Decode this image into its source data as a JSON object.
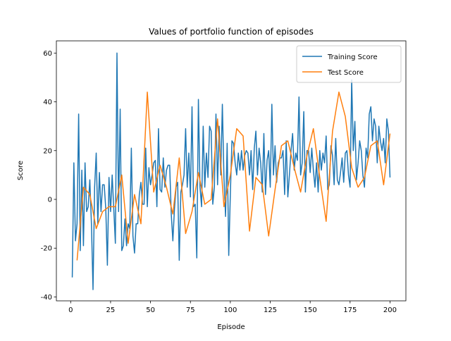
{
  "chart_data": {
    "type": "line",
    "title": "Values of portfolio function of episodes",
    "x_label": "Episode",
    "y_label": "Score",
    "xlim": [
      -8.95,
      209.95
    ],
    "ylim": [
      -41.6,
      65
    ],
    "xticks": [
      0,
      25,
      50,
      75,
      100,
      125,
      150,
      175,
      200
    ],
    "yticks": [
      -40,
      -20,
      0,
      20,
      40,
      60
    ],
    "grid": false,
    "legend": "upper right",
    "series": [
      {
        "name": "Training Score",
        "color": "#1f77b4",
        "x": [
          1,
          2,
          3,
          4,
          5,
          6,
          7,
          8,
          9,
          10,
          11,
          12,
          13,
          14,
          15,
          16,
          17,
          18,
          19,
          20,
          21,
          22,
          23,
          24,
          25,
          26,
          27,
          28,
          29,
          30,
          31,
          32,
          33,
          34,
          35,
          36,
          37,
          38,
          39,
          40,
          41,
          42,
          43,
          44,
          45,
          46,
          47,
          48,
          49,
          50,
          51,
          52,
          53,
          54,
          55,
          56,
          57,
          58,
          59,
          60,
          61,
          62,
          63,
          64,
          65,
          66,
          67,
          68,
          69,
          70,
          71,
          72,
          73,
          74,
          75,
          76,
          77,
          78,
          79,
          80,
          81,
          82,
          83,
          84,
          85,
          86,
          87,
          88,
          89,
          90,
          91,
          92,
          93,
          94,
          95,
          96,
          97,
          98,
          99,
          100,
          101,
          102,
          103,
          104,
          105,
          106,
          107,
          108,
          109,
          110,
          111,
          112,
          113,
          114,
          115,
          116,
          117,
          118,
          119,
          120,
          121,
          122,
          123,
          124,
          125,
          126,
          127,
          128,
          129,
          130,
          131,
          132,
          133,
          134,
          135,
          136,
          137,
          138,
          139,
          140,
          141,
          142,
          143,
          144,
          145,
          146,
          147,
          148,
          149,
          150,
          151,
          152,
          153,
          154,
          155,
          156,
          157,
          158,
          159,
          160,
          161,
          162,
          163,
          164,
          165,
          166,
          167,
          168,
          169,
          170,
          171,
          172,
          173,
          174,
          175,
          176,
          177,
          178,
          179,
          180,
          181,
          182,
          183,
          184,
          185,
          186,
          187,
          188,
          189,
          190,
          191,
          192,
          193,
          194,
          195,
          196,
          197,
          198,
          199,
          200
        ],
        "values": [
          -32,
          15,
          -17,
          -10,
          35,
          -21,
          12,
          -19,
          15,
          -5,
          -3,
          8,
          -10,
          -37,
          5,
          19,
          -10,
          11,
          -5,
          6,
          6,
          -4,
          -27,
          9,
          -5,
          10,
          -4,
          -18,
          60,
          -5,
          37,
          -21,
          -19,
          -8,
          -19,
          -10,
          -12,
          21,
          -15,
          -22,
          -10,
          -10,
          2,
          7,
          -2,
          -2,
          21,
          -3,
          13,
          6,
          10,
          15,
          16,
          -3,
          29,
          4,
          3,
          17,
          5,
          12,
          14,
          14,
          -6,
          -17,
          -4,
          5,
          7,
          -25,
          3,
          6,
          10,
          29,
          5,
          19,
          1,
          38,
          -3,
          -2,
          -24,
          41,
          5,
          -3,
          30,
          5,
          19,
          9,
          30,
          28,
          -2,
          5,
          35,
          6,
          30,
          10,
          39,
          9,
          -7,
          23,
          -23,
          2,
          24,
          23,
          15,
          10,
          19,
          12,
          20,
          12,
          18,
          20,
          19,
          10,
          20,
          4,
          21,
          28,
          10,
          21,
          15,
          3,
          27,
          2,
          16,
          20,
          5,
          39,
          10,
          22,
          7,
          15,
          17,
          17,
          20,
          2,
          24,
          1,
          10,
          20,
          27,
          12,
          19,
          16,
          42,
          10,
          15,
          36,
          3,
          20,
          20,
          11,
          21,
          12,
          5,
          15,
          3,
          20,
          12,
          19,
          15,
          26,
          4,
          6,
          22,
          18,
          6,
          25,
          8,
          6,
          11,
          17,
          7,
          19,
          20,
          10,
          5,
          49,
          20,
          32,
          8,
          15,
          24,
          20,
          10,
          5,
          21,
          17,
          35,
          38,
          24,
          33,
          30,
          15,
          30,
          24,
          20,
          25,
          15,
          33,
          28,
          9
        ]
      },
      {
        "name": "Test Score",
        "color": "#ff7f0e",
        "x": [
          4,
          8,
          12,
          16,
          20,
          24,
          28,
          32,
          36,
          40,
          44,
          48,
          52,
          56,
          60,
          64,
          68,
          72,
          76,
          80,
          84,
          88,
          92,
          96,
          100,
          104,
          108,
          112,
          116,
          120,
          124,
          128,
          132,
          136,
          140,
          144,
          148,
          152,
          156,
          160,
          164,
          168,
          172,
          176,
          180,
          184,
          188,
          192,
          196,
          200
        ],
        "values": [
          -25,
          5,
          2,
          -12,
          -5,
          -3,
          -3,
          10,
          -18,
          2,
          -10,
          44,
          3,
          14,
          5,
          -6,
          17,
          -14,
          -5,
          11,
          -2,
          0,
          33,
          -3,
          10,
          29,
          26,
          -13,
          9,
          6,
          -15,
          4,
          22,
          24,
          13,
          3,
          18,
          29,
          9,
          -9,
          28,
          44,
          34,
          13,
          5,
          9,
          22,
          24,
          6,
          27
        ]
      }
    ]
  }
}
